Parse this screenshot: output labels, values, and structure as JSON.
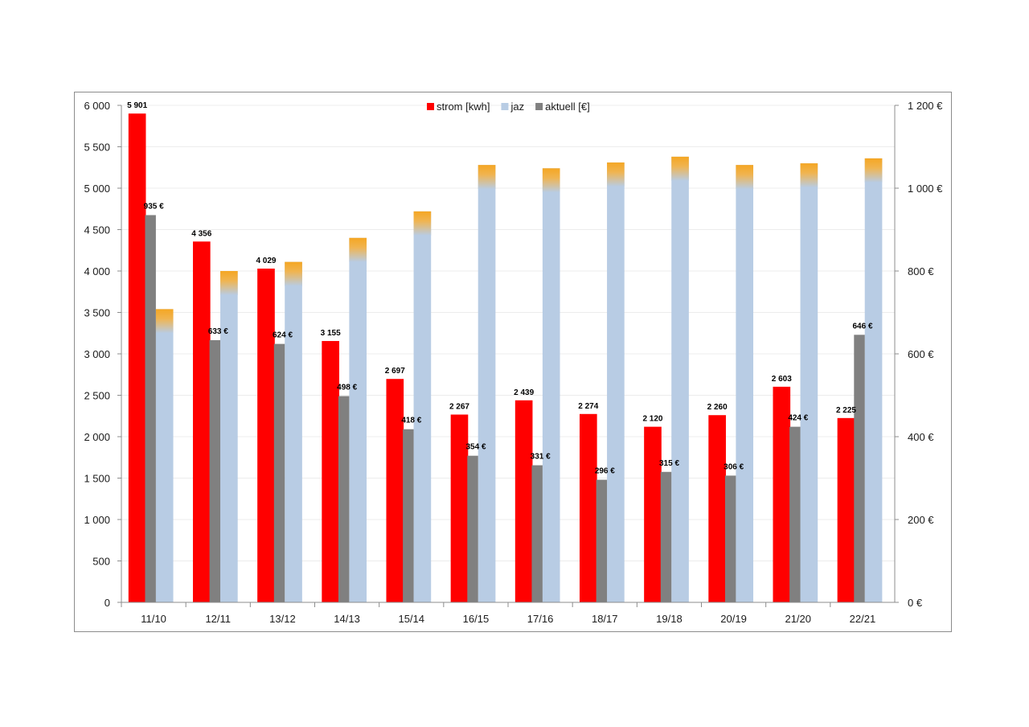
{
  "chart_data": {
    "type": "bar",
    "categories": [
      "11/10",
      "12/11",
      "13/12",
      "14/13",
      "15/14",
      "16/15",
      "17/16",
      "18/17",
      "19/18",
      "20/19",
      "21/20",
      "22/21"
    ],
    "series": [
      {
        "name": "strom [kwh]",
        "axis": "left",
        "color": "#ff0000",
        "values": [
          5901,
          4356,
          4029,
          3155,
          2697,
          2267,
          2439,
          2274,
          2120,
          2260,
          2603,
          2225
        ],
        "labels": [
          "5 901",
          "4 356",
          "4 029",
          "3 155",
          "2 697",
          "2 267",
          "2 439",
          "2 274",
          "2 120",
          "2 260",
          "2 603",
          "2 225"
        ]
      },
      {
        "name": "aktuell [€]",
        "axis": "right",
        "color": "#808080",
        "values": [
          935,
          633,
          624,
          498,
          418,
          354,
          331,
          296,
          315,
          306,
          424,
          646
        ],
        "labels": [
          "935 €",
          "633 €",
          "624 €",
          "498 €",
          "418 €",
          "354 €",
          "331 €",
          "296 €",
          "315 €",
          "306 €",
          "424 €",
          "646 €"
        ]
      },
      {
        "name": "jaz",
        "axis": "left",
        "color": "#b8cce4",
        "top_color": "#f5a623",
        "values": [
          3540,
          4000,
          4110,
          4400,
          4720,
          5280,
          5240,
          5310,
          5380,
          5280,
          5300,
          5360
        ]
      }
    ],
    "legend": {
      "position": "top-center",
      "items": [
        {
          "label": "strom [kwh]",
          "color": "#ff0000"
        },
        {
          "label": "jaz",
          "color": "#b8cce4"
        },
        {
          "label": "aktuell [€]",
          "color": "#808080"
        }
      ]
    },
    "y_left": {
      "range": [
        0,
        6000
      ],
      "ticks": [
        0,
        500,
        1000,
        1500,
        2000,
        2500,
        3000,
        3500,
        4000,
        4500,
        5000,
        5500,
        6000
      ],
      "tick_labels": [
        "0",
        "500",
        "1 000",
        "1 500",
        "2 000",
        "2 500",
        "3 000",
        "3 500",
        "4 000",
        "4 500",
        "5 000",
        "5 500",
        "6 000"
      ]
    },
    "y_right": {
      "range": [
        0,
        1200
      ],
      "ticks": [
        0,
        200,
        400,
        600,
        800,
        1000,
        1200
      ],
      "tick_labels": [
        "0 €",
        "200 €",
        "400 €",
        "600 €",
        "800 €",
        "1 000 €",
        "1 200 €"
      ]
    },
    "grid": true,
    "title": "",
    "xlabel": "",
    "ylabel": ""
  }
}
